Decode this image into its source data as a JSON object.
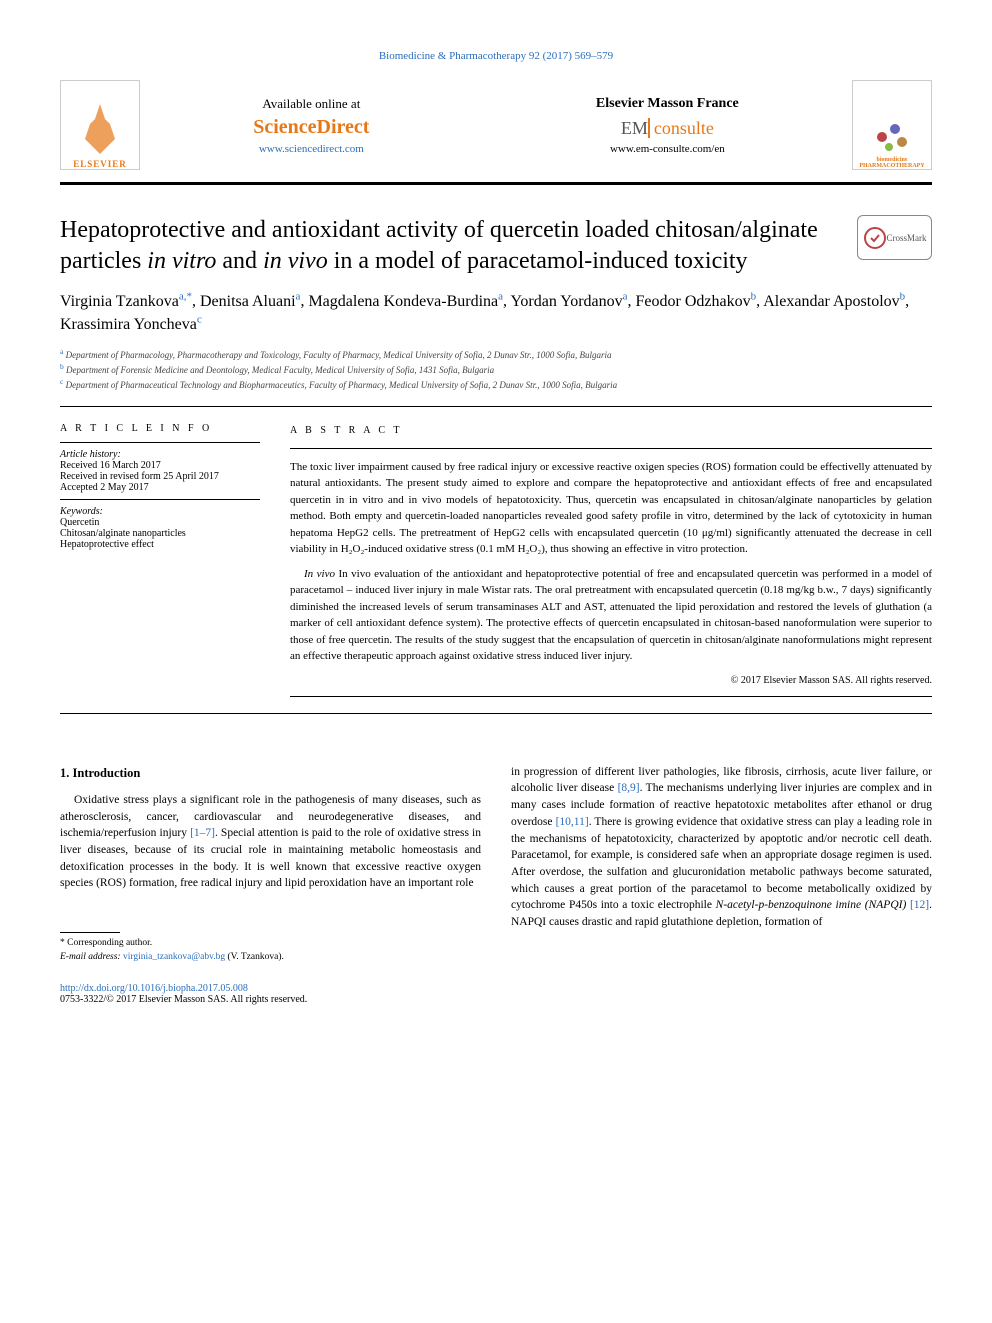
{
  "header_link": "Biomedicine & Pharmacotherapy 92 (2017) 569–579",
  "top": {
    "elsevier": "ELSEVIER",
    "available": "Available online at",
    "sd": "ScienceDirect",
    "sd_url": "www.sciencedirect.com",
    "em_title": "Elsevier Masson France",
    "em_em": "EM",
    "em_con": "consulte",
    "em_url": "www.em-consulte.com/en",
    "journal1": "biomedicine",
    "journal2": "PHARMACOTHERAPY"
  },
  "title_pre": "Hepatoprotective and antioxidant activity of quercetin loaded chitosan/alginate particles ",
  "title_it1": "in vitro",
  "title_mid": " and ",
  "title_it2": "in vivo",
  "title_post": " in a model of paracetamol-induced toxicity",
  "crossmark": "CrossMark",
  "authors": [
    {
      "name": "Virginia Tzankova",
      "sup": "a,*"
    },
    {
      "name": "Denitsa Aluani",
      "sup": "a"
    },
    {
      "name": "Magdalena Kondeva-Burdina",
      "sup": "a"
    },
    {
      "name": "Yordan Yordanov",
      "sup": "a"
    },
    {
      "name": "Feodor Odzhakov",
      "sup": "b"
    },
    {
      "name": "Alexandar Apostolov",
      "sup": "b"
    },
    {
      "name": "Krassimira Yoncheva",
      "sup": "c"
    }
  ],
  "affils": [
    {
      "sup": "a",
      "text": "Department of Pharmacology, Pharmacotherapy and Toxicology, Faculty of Pharmacy, Medical University of Sofia, 2 Dunav Str., 1000 Sofia, Bulgaria"
    },
    {
      "sup": "b",
      "text": "Department of Forensic Medicine and Deontology, Medical Faculty, Medical University of Sofia, 1431 Sofia, Bulgaria"
    },
    {
      "sup": "c",
      "text": "Department of Pharmaceutical Technology and Biopharmaceutics, Faculty of Pharmacy, Medical University of Sofia, 2 Dunav Str., 1000 Sofia, Bulgaria"
    }
  ],
  "info": {
    "heading": "A R T I C L E  I N F O",
    "history_label": "Article history:",
    "received": "Received 16 March 2017",
    "revised": "Received in revised form 25 April 2017",
    "accepted": "Accepted 2 May 2017",
    "keywords_label": "Keywords:",
    "keywords": [
      "Quercetin",
      "Chitosan/alginate nanoparticles",
      "Hepatoprotective effect"
    ]
  },
  "abstract": {
    "heading": "A B S T R A C T",
    "p1": "The toxic liver impairment caused by free radical injury or excessive reactive oxigen species (ROS) formation could be effectivelly attenuated by natural antioxidants. The present study aimed to explore and compare the hepatoprotective and antioxidant effects of free and encapsulated quercetin in in vitro and in vivo models of hepatotoxicity. Thus, quercetin was encapsulated in chitosan/alginate nanoparticles by gelation method. Both empty and quercetin-loaded nanoparticles revealed good safety profile in vitro, determined by the lack of cytotoxicity in human hepatoma HepG2 cells. The pretreatment of HepG2 cells with encapsulated quercetin (10 μg/ml) significantly attenuated the decrease in cell viability in H₂O₂-induced oxidative stress (0.1 mM H₂O₂), thus showing an effective in vitro protection.",
    "p2": "In vivo evaluation of the antioxidant and hepatoprotective potential of free and encapsulated quercetin was performed in a model of paracetamol – induced liver injury in male Wistar rats. The oral pretreatment with encapsulated quercetin (0.18 mg/kg b.w., 7 days) significantly diminished the increased levels of serum transaminases ALT and AST, attenuated the lipid peroxidation and restored the levels of gluthation (a marker of cell antioxidant defence system). The protective effects of quercetin encapsulated in chitosan-based nanoformulation were superior to those of free quercetin. The results of the study suggest that the encapsulation of quercetin in chitosan/alginate nanoformulations might represent an effective therapeutic approach against oxidative stress induced liver injury.",
    "copyright": "© 2017 Elsevier Masson SAS. All rights reserved."
  },
  "intro": {
    "heading": "1. Introduction",
    "col1_p1a": "Oxidative stress plays a significant role in the pathogenesis of many diseases, such as atherosclerosis, cancer, cardiovascular and neurodegenerative diseases, and ischemia/reperfusion injury ",
    "col1_ref1": "[1–7]",
    "col1_p1b": ". Special attention is paid to the role of oxidative stress in liver diseases, because of its crucial role in maintaining metabolic homeostasis and detoxification processes in the body. It is well known that excessive reactive oxygen species (ROS) formation, free radical injury and lipid peroxidation have an important role",
    "col2_p1a": "in progression of different liver pathologies, like fibrosis, cirrhosis, acute liver failure, or alcoholic liver disease ",
    "col2_ref1": "[8,9]",
    "col2_p1b": ". The mechanisms underlying liver injuries are complex and in many cases include formation of reactive hepatotoxic metabolites after ethanol or drug overdose ",
    "col2_ref2": "[10,11]",
    "col2_p1c": ". There is growing evidence that oxidative stress can play a leading role in the mechanisms of hepatotoxicity, characterized by apoptotic and/or necrotic cell death. Paracetamol, for example, is considered safe when an appropriate dosage regimen is used. After overdose, the sulfation and glucuronidation metabolic pathways become saturated, which causes a great portion of the paracetamol to become metabolically oxidized by cytochrome P450s into a toxic electrophile ",
    "col2_napqi": "N-acetyl-p-benzoquinone imine (NAPQI) ",
    "col2_ref3": "[12]",
    "col2_p1d": ". NAPQI causes drastic and rapid glutathione depletion, formation of"
  },
  "footnote": {
    "corr": "* Corresponding author.",
    "email_label": "E-mail address:",
    "email": "virginia_tzankova@abv.bg",
    "email_person": "(V. Tzankova)."
  },
  "bottom": {
    "doi": "http://dx.doi.org/10.1016/j.biopha.2017.05.008",
    "issn": "0753-3322/© 2017 Elsevier Masson SAS. All rights reserved."
  }
}
